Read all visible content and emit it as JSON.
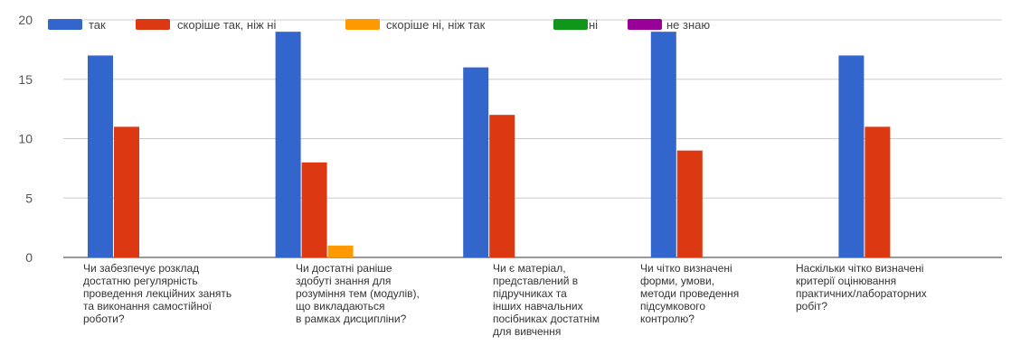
{
  "chart_data": {
    "type": "bar",
    "title": "",
    "xlabel": "",
    "ylabel": "",
    "ylim": [
      0,
      20
    ],
    "yticks": [
      0,
      5,
      10,
      15,
      20
    ],
    "legend_position": "top",
    "grid": true,
    "categories": [
      "Чи забезпечує розклад достатню регулярність проведення лекційних занять та виконання самостійної роботи?",
      "Чи достатні раніше здобуті знання для розуміння тем (модулів), що викладаються в рамках дисципліни?",
      "Чи є матеріал, представлений в підручниках та інших навчальних посібниках достатнім для вивчення",
      "Чи чітко визначені форми, умови, методи проведення підсумкового контролю?",
      "Наскільки чітко визначені критерії оцінювання практичних/лабораторних робіт?"
    ],
    "category_lines": [
      [
        "Чи забезпечує розклад",
        "достатню регулярність",
        "проведення лекційних занять",
        "та виконання самостійної",
        "роботи?"
      ],
      [
        "Чи достатні раніше",
        "здобуті знання для",
        "розуміння тем (модулів),",
        "що викладаються",
        "в рамках дисципліни?"
      ],
      [
        "Чи є матеріал,",
        "представлений в",
        "підручниках та",
        "інших навчальних",
        "посібниках достатнім",
        "для вивчення"
      ],
      [
        "Чи чітко визначені",
        "форми, умови,",
        "методи проведення",
        "підсумкового",
        "контролю?"
      ],
      [
        "Наскільки чітко визначені",
        "критерії оцінювання",
        "практичних/лабораторних",
        "робіт?"
      ]
    ],
    "series": [
      {
        "name": "так",
        "color": "#3366cc",
        "values": [
          17,
          19,
          16,
          19,
          17
        ]
      },
      {
        "name": "скоріше так, ніж ні",
        "color": "#dc3912",
        "values": [
          11,
          8,
          12,
          9,
          11
        ]
      },
      {
        "name": "скоріше ні, ніж так",
        "color": "#ff9900",
        "values": [
          0,
          1,
          0,
          0,
          0
        ]
      },
      {
        "name": "ні",
        "color": "#109618",
        "values": [
          0,
          0,
          0,
          0,
          0
        ]
      },
      {
        "name": "не знаю",
        "color": "#990099",
        "values": [
          0,
          0,
          0,
          0,
          0
        ]
      }
    ]
  }
}
